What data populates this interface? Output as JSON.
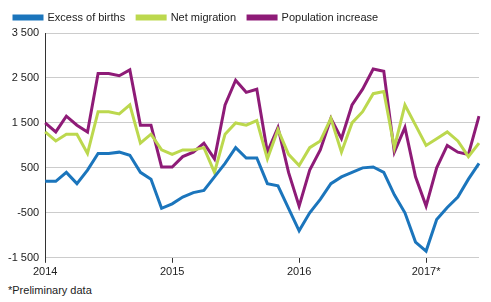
{
  "chart_data": {
    "type": "line",
    "categories": [
      "2014",
      null,
      null,
      null,
      null,
      null,
      null,
      null,
      null,
      null,
      null,
      null,
      "2015",
      null,
      null,
      null,
      null,
      null,
      null,
      null,
      null,
      null,
      null,
      null,
      "2016",
      null,
      null,
      null,
      null,
      null,
      null,
      null,
      null,
      null,
      null,
      null,
      "2017*",
      null,
      null,
      null,
      null,
      null
    ],
    "series": [
      {
        "name": "Excess of births",
        "color": "#1b75bc",
        "values": [
          200,
          200,
          400,
          150,
          450,
          820,
          820,
          850,
          780,
          400,
          250,
          -400,
          -300,
          -150,
          -50,
          0,
          300,
          600,
          950,
          720,
          720,
          150,
          100,
          -400,
          -900,
          -500,
          -200,
          150,
          300,
          400,
          500,
          520,
          400,
          -100,
          -500,
          -1150,
          -1350,
          -650,
          -380,
          -150,
          250,
          600
        ]
      },
      {
        "name": "Net migration",
        "color": "#bcd84e",
        "values": [
          1300,
          1100,
          1250,
          1250,
          820,
          1750,
          1750,
          1700,
          1900,
          1050,
          1250,
          900,
          800,
          900,
          900,
          950,
          400,
          1250,
          1500,
          1450,
          1550,
          700,
          1350,
          800,
          550,
          950,
          1100,
          1600,
          850,
          1500,
          1750,
          2150,
          2200,
          950,
          1900,
          1450,
          1000,
          1150,
          1300,
          1100,
          750,
          1050
        ]
      },
      {
        "name": "Population increase",
        "color": "#8e1b77",
        "values": [
          1500,
          1300,
          1650,
          1450,
          1300,
          2600,
          2600,
          2550,
          2680,
          1450,
          1450,
          520,
          520,
          750,
          850,
          1050,
          700,
          1900,
          2450,
          2180,
          2250,
          850,
          1400,
          400,
          -350,
          450,
          900,
          1600,
          1150,
          1900,
          2250,
          2700,
          2650,
          850,
          1400,
          300,
          -350,
          500,
          1000,
          850,
          800,
          1650
        ]
      }
    ],
    "ylim": [
      -1500,
      3500
    ],
    "yticks": [
      {
        "value": -1500,
        "label": "-1 500"
      },
      -500,
      500,
      {
        "value": 1500,
        "label": "1 500"
      },
      {
        "value": 2500,
        "label": "2 500"
      },
      {
        "value": 3500,
        "label": "3 500"
      }
    ],
    "grid": "y",
    "legend": "top",
    "annotations": [
      "*Preliminary data"
    ]
  }
}
